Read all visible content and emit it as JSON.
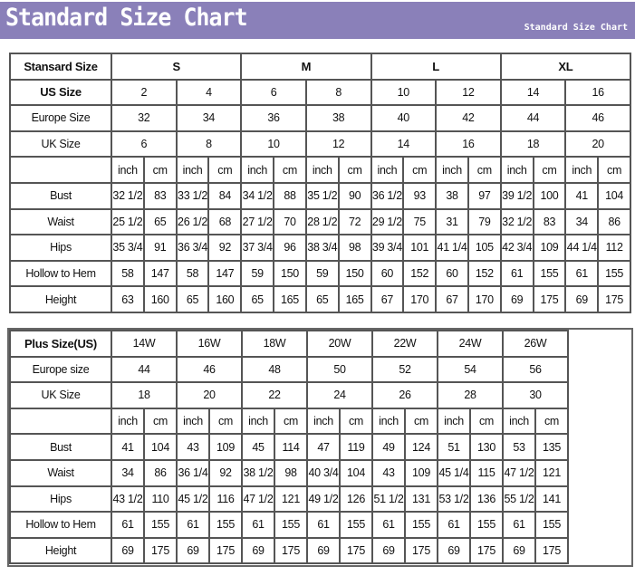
{
  "banner": {
    "title": "Standard Size Chart",
    "subtitle": "Standard Size Chart"
  },
  "standard": {
    "header_label": "Stansard Size",
    "sizes": [
      "S",
      "M",
      "L",
      "XL"
    ],
    "us_label": "US Size",
    "us": [
      "2",
      "4",
      "6",
      "8",
      "10",
      "12",
      "14",
      "16"
    ],
    "europe_label": "Europe Size",
    "europe": [
      "32",
      "34",
      "36",
      "38",
      "40",
      "42",
      "44",
      "46"
    ],
    "uk_label": "UK Size",
    "uk": [
      "6",
      "8",
      "10",
      "12",
      "14",
      "16",
      "18",
      "20"
    ],
    "units": [
      "inch",
      "cm"
    ],
    "measurements": [
      {
        "label": "Bust",
        "values": [
          "32 1/2",
          "83",
          "33 1/2",
          "84",
          "34 1/2",
          "88",
          "35 1/2",
          "90",
          "36 1/2",
          "93",
          "38",
          "97",
          "39 1/2",
          "100",
          "41",
          "104"
        ]
      },
      {
        "label": "Waist",
        "values": [
          "25 1/2",
          "65",
          "26 1/2",
          "68",
          "27 1/2",
          "70",
          "28 1/2",
          "72",
          "29 1/2",
          "75",
          "31",
          "79",
          "32 1/2",
          "83",
          "34",
          "86"
        ]
      },
      {
        "label": "Hips",
        "values": [
          "35 3/4",
          "91",
          "36 3/4",
          "92",
          "37 3/4",
          "96",
          "38 3/4",
          "98",
          "39 3/4",
          "101",
          "41 1/4",
          "105",
          "42 3/4",
          "109",
          "44 1/4",
          "112"
        ]
      },
      {
        "label": "Hollow to Hem",
        "values": [
          "58",
          "147",
          "58",
          "147",
          "59",
          "150",
          "59",
          "150",
          "60",
          "152",
          "60",
          "152",
          "61",
          "155",
          "61",
          "155"
        ]
      },
      {
        "label": "Height",
        "values": [
          "63",
          "160",
          "65",
          "160",
          "65",
          "165",
          "65",
          "165",
          "67",
          "170",
          "67",
          "170",
          "69",
          "175",
          "69",
          "175"
        ]
      }
    ]
  },
  "plus": {
    "header_label": "Plus Size(US)",
    "sizes": [
      "14W",
      "16W",
      "18W",
      "20W",
      "22W",
      "24W",
      "26W"
    ],
    "europe_label": "Europe size",
    "europe": [
      "44",
      "46",
      "48",
      "50",
      "52",
      "54",
      "56"
    ],
    "uk_label": "UK Size",
    "uk": [
      "18",
      "20",
      "22",
      "24",
      "26",
      "28",
      "30"
    ],
    "units": [
      "inch",
      "cm"
    ],
    "measurements": [
      {
        "label": "Bust",
        "values": [
          "41",
          "104",
          "43",
          "109",
          "45",
          "114",
          "47",
          "119",
          "49",
          "124",
          "51",
          "130",
          "53",
          "135"
        ]
      },
      {
        "label": "Waist",
        "values": [
          "34",
          "86",
          "36 1/4",
          "92",
          "38 1/2",
          "98",
          "40 3/4",
          "104",
          "43",
          "109",
          "45 1/4",
          "115",
          "47 1/2",
          "121"
        ]
      },
      {
        "label": "Hips",
        "values": [
          "43 1/2",
          "110",
          "45 1/2",
          "116",
          "47 1/2",
          "121",
          "49 1/2",
          "126",
          "51 1/2",
          "131",
          "53 1/2",
          "136",
          "55 1/2",
          "141"
        ]
      },
      {
        "label": "Hollow to Hem",
        "values": [
          "61",
          "155",
          "61",
          "155",
          "61",
          "155",
          "61",
          "155",
          "61",
          "155",
          "61",
          "155",
          "61",
          "155"
        ]
      },
      {
        "label": "Height",
        "values": [
          "69",
          "175",
          "69",
          "175",
          "69",
          "175",
          "69",
          "175",
          "69",
          "175",
          "69",
          "175",
          "69",
          "175"
        ]
      }
    ]
  }
}
